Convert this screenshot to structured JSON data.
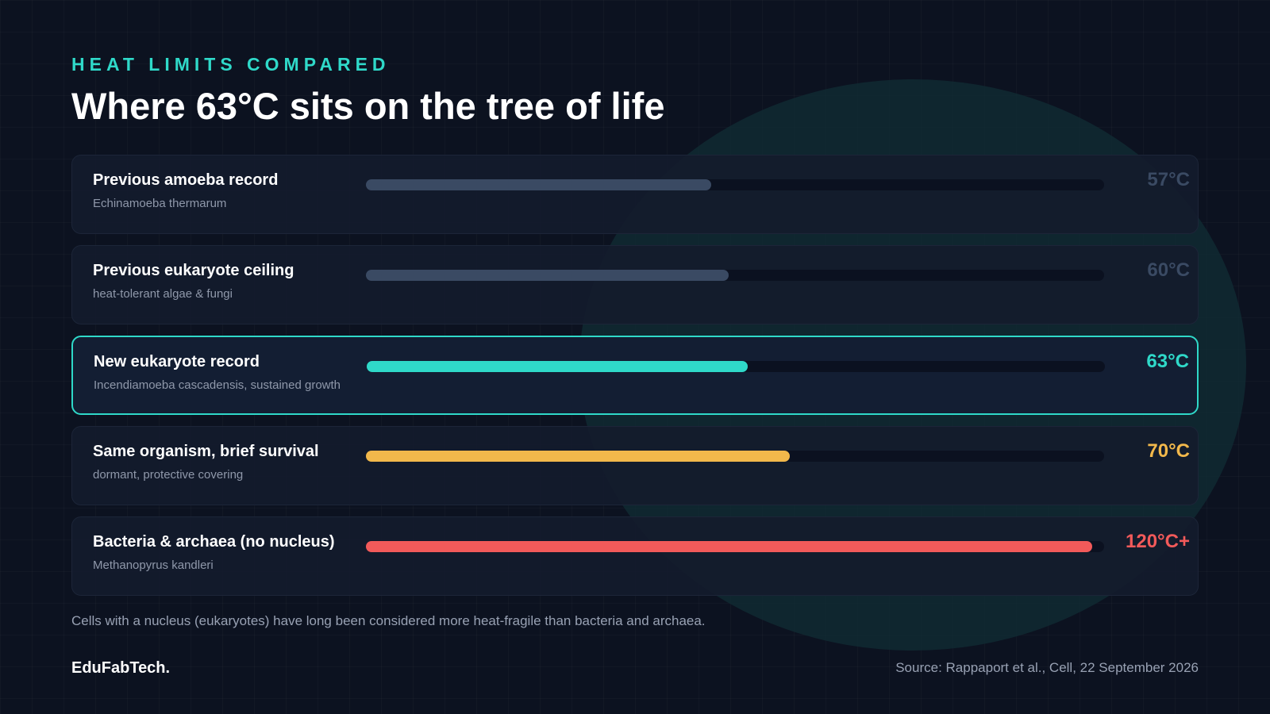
{
  "header": {
    "eyebrow": "HEAT LIMITS COMPARED",
    "title": "Where 63°C sits on the tree of life"
  },
  "chart_data": {
    "type": "bar",
    "orientation": "horizontal",
    "scale_max": 122,
    "rows": [
      {
        "label": "Previous amoeba record",
        "sublabel": "Echinamoeba thermarum",
        "value": 57,
        "value_label": "57°C",
        "bar_color": "#3a4a63",
        "value_color": "#3a4a63",
        "highlight": false
      },
      {
        "label": "Previous eukaryote ceiling",
        "sublabel": "heat-tolerant algae & fungi",
        "value": 60,
        "value_label": "60°C",
        "bar_color": "#3a4a63",
        "value_color": "#3a4a63",
        "highlight": false
      },
      {
        "label": "New eukaryote record",
        "sublabel": "Incendiamoeba cascadensis, sustained growth",
        "value": 63,
        "value_label": "63°C",
        "bar_color": "#2fd9c9",
        "value_color": "#2fd9c9",
        "highlight": true
      },
      {
        "label": "Same organism, brief survival",
        "sublabel": "dormant, protective covering",
        "value": 70,
        "value_label": "70°C",
        "bar_color": "#f2b84b",
        "value_color": "#f2b84b",
        "highlight": false
      },
      {
        "label": "Bacteria & archaea (no nucleus)",
        "sublabel": "Methanopyrus kandleri",
        "value": 120,
        "value_label": "120°C+",
        "bar_color": "#f25a5a",
        "value_color": "#f25a5a",
        "highlight": false
      }
    ]
  },
  "footnote": "Cells with a nucleus (eukaryotes) have long been considered more heat-fragile than bacteria and archaea.",
  "footer": {
    "brand": "EduFabTech.",
    "source": "Source: Rappaport et al., Cell, 22 September 2026"
  }
}
